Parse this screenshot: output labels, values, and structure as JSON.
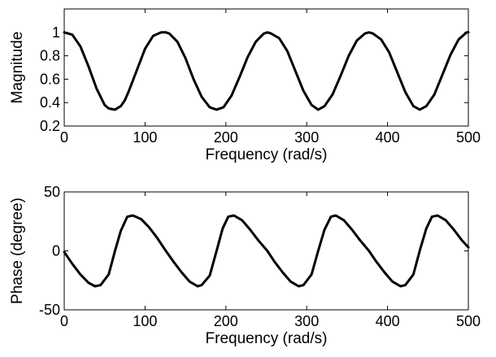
{
  "chart_data": [
    {
      "type": "line",
      "xlabel": "Frequency (rad/s)",
      "ylabel": "Magnitude",
      "xlim": [
        0,
        500
      ],
      "ylim": [
        0.2,
        1.2
      ],
      "xticks": [
        0,
        100,
        200,
        300,
        400,
        500
      ],
      "yticks": [
        0.2,
        0.4,
        0.6,
        0.8,
        1
      ],
      "xtick_labels": [
        "0",
        "100",
        "200",
        "300",
        "400",
        "500"
      ],
      "ytick_labels": [
        "0.2",
        "0.4",
        "0.6",
        "0.8",
        "1"
      ],
      "grid": false,
      "line_color": "#000000",
      "series": [
        {
          "x": [
            0,
            10,
            20,
            30,
            40,
            50,
            55,
            62.8,
            70,
            75,
            80,
            90,
            100,
            110,
            120,
            125.7,
            130,
            140,
            150,
            160,
            170,
            180,
            188.5,
            197,
            207,
            217,
            227,
            237,
            247,
            251.3,
            256,
            266,
            276,
            286,
            296,
            306,
            314.2,
            322,
            332,
            342,
            352,
            362,
            372,
            377,
            382,
            392,
            402,
            412,
            422,
            432,
            439.8,
            448,
            458,
            468,
            478,
            488,
            498,
            500
          ],
          "y": [
            1.0,
            0.98,
            0.88,
            0.71,
            0.52,
            0.38,
            0.35,
            0.34,
            0.37,
            0.42,
            0.5,
            0.68,
            0.86,
            0.97,
            1.0,
            1.0,
            0.99,
            0.92,
            0.78,
            0.6,
            0.45,
            0.36,
            0.34,
            0.36,
            0.46,
            0.62,
            0.79,
            0.92,
            0.99,
            1.0,
            0.99,
            0.95,
            0.84,
            0.67,
            0.5,
            0.38,
            0.34,
            0.37,
            0.47,
            0.63,
            0.8,
            0.93,
            0.99,
            1.0,
            0.99,
            0.94,
            0.83,
            0.66,
            0.49,
            0.37,
            0.34,
            0.37,
            0.47,
            0.64,
            0.81,
            0.94,
            1.0,
            1.0
          ]
        }
      ]
    },
    {
      "type": "line",
      "xlabel": "Frequency (rad/s)",
      "ylabel": "Phase (degree)",
      "xlim": [
        0,
        500
      ],
      "ylim": [
        -50,
        50
      ],
      "xticks": [
        0,
        100,
        200,
        300,
        400,
        500
      ],
      "yticks": [
        -50,
        0,
        50
      ],
      "xtick_labels": [
        "0",
        "100",
        "200",
        "300",
        "400",
        "500"
      ],
      "ytick_labels": [
        "-50",
        "0",
        "50"
      ],
      "grid": false,
      "line_color": "#000000",
      "series": [
        {
          "x": [
            0,
            10,
            20,
            30,
            38,
            45,
            55,
            62.8,
            70,
            78,
            85,
            95,
            105,
            115,
            125.7,
            135,
            145,
            155,
            165,
            170,
            180,
            188.5,
            196,
            203,
            210,
            220,
            230,
            240,
            251.3,
            260,
            270,
            280,
            290,
            296,
            306,
            314.2,
            322,
            330,
            336,
            346,
            356,
            366,
            377,
            386,
            396,
            406,
            416,
            422,
            432,
            439.8,
            448,
            455,
            462,
            472,
            482,
            492,
            500
          ],
          "y": [
            -1,
            -11,
            -20,
            -27,
            -30,
            -29,
            -20,
            0,
            17,
            29,
            30,
            27,
            20,
            11,
            0,
            -9,
            -18,
            -26,
            -30,
            -29,
            -21,
            0,
            19,
            29,
            30,
            26,
            18,
            9,
            0,
            -9,
            -18,
            -26,
            -30,
            -29,
            -20,
            0,
            18,
            29,
            30,
            26,
            18,
            9,
            0,
            -9,
            -18,
            -26,
            -30,
            -29,
            -20,
            0,
            19,
            29,
            30,
            26,
            18,
            9,
            3
          ]
        }
      ]
    }
  ]
}
